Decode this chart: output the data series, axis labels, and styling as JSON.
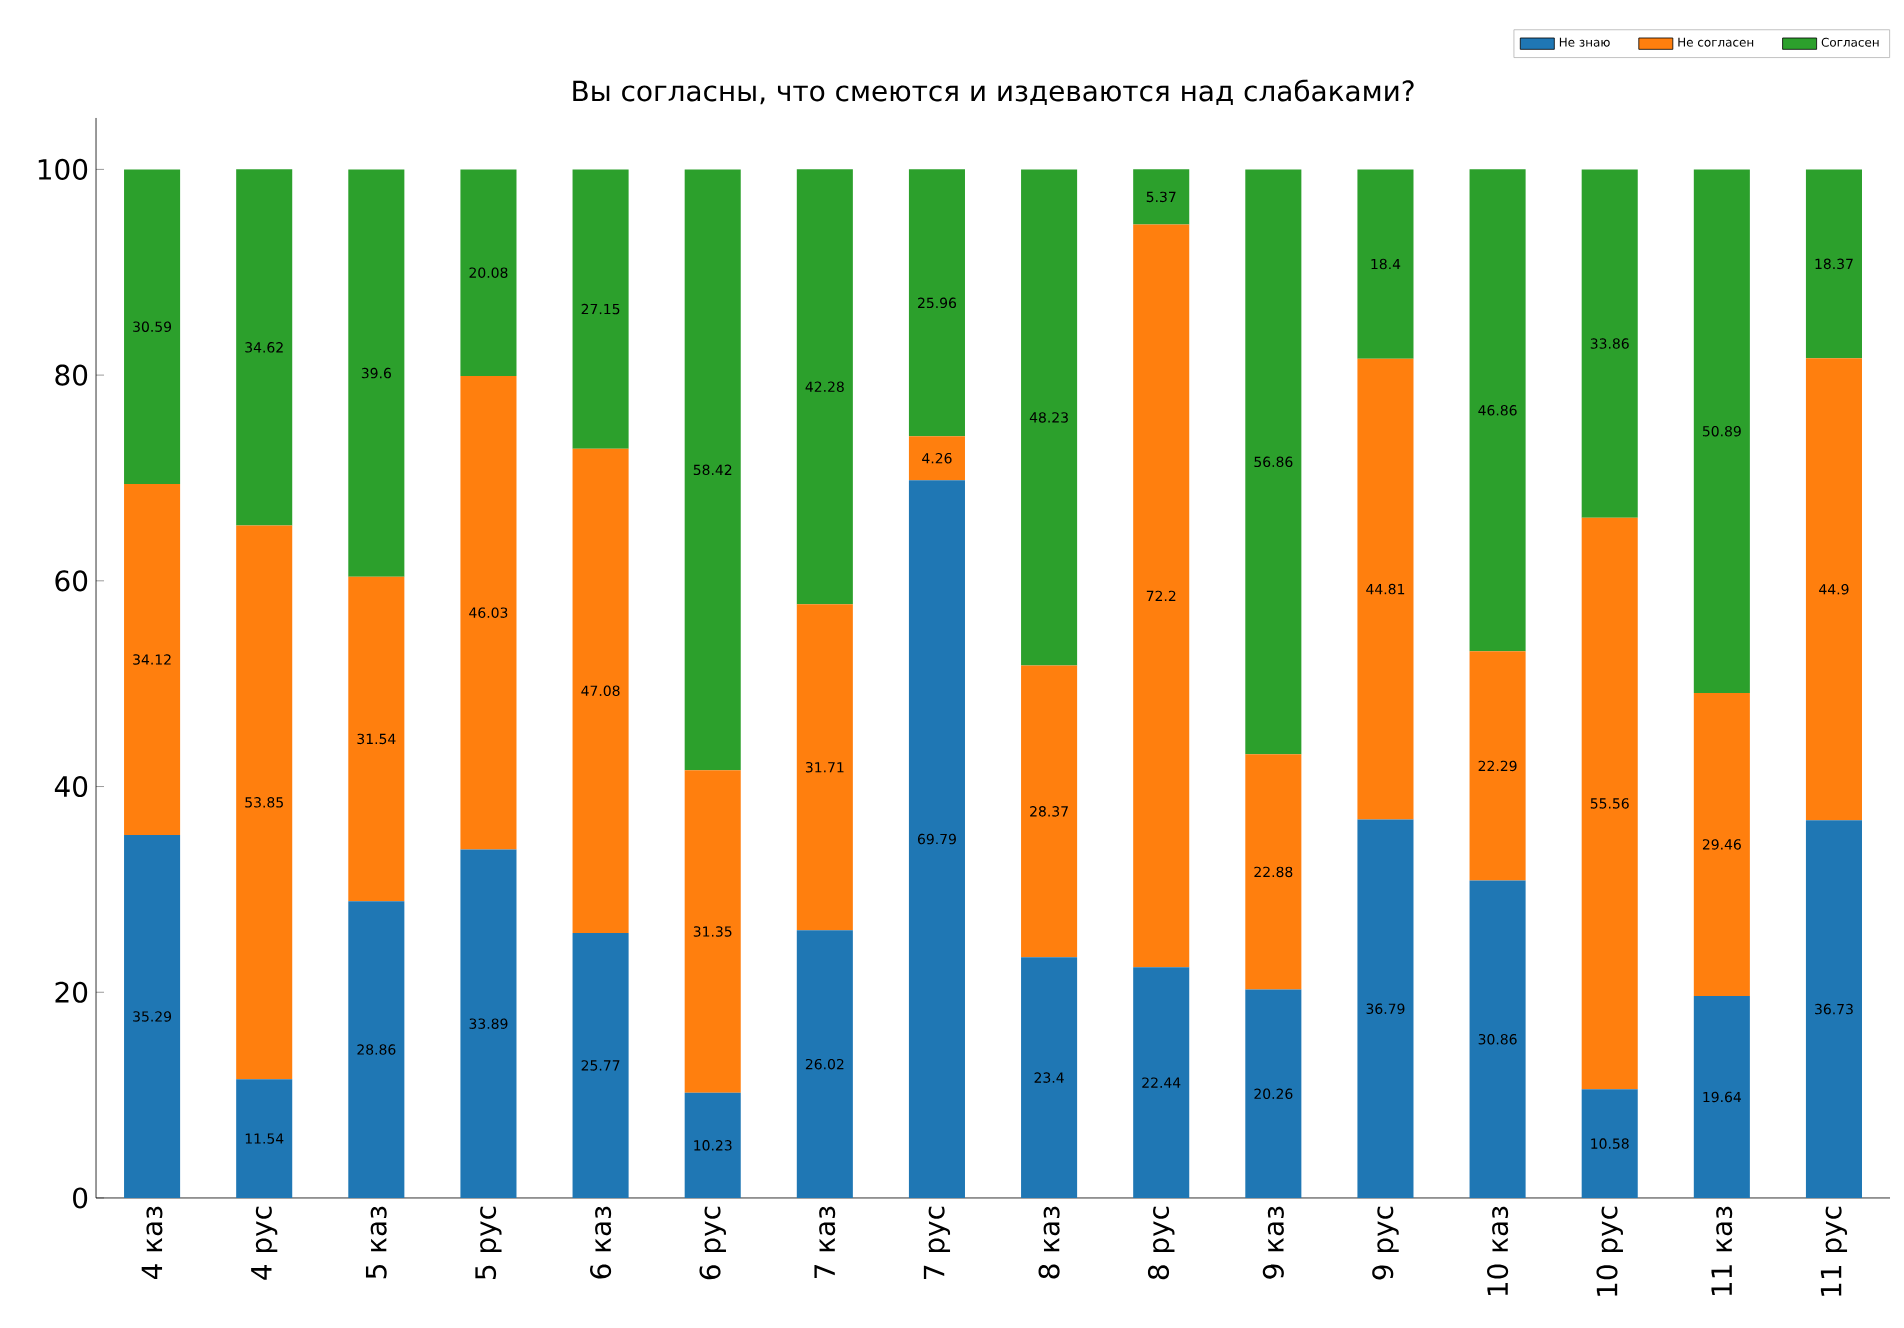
{
  "chart_data": {
    "type": "bar",
    "stacked": true,
    "title": "Вы согласны,  что смеются и издеваются над слабаками?",
    "categories": [
      "4 каз",
      "4 рус",
      "5 каз",
      "5 рус",
      "6 каз",
      "6 рус",
      "7 каз",
      "7 рус",
      "8 каз",
      "8 рус",
      "9 каз",
      "9 рус",
      "10 каз",
      "10 рус",
      "11 каз",
      "11 рус"
    ],
    "series": [
      {
        "name": "Не знаю",
        "color": "#1f77b4",
        "values": [
          35.29,
          11.54,
          28.86,
          33.89,
          25.77,
          10.23,
          26.02,
          69.79,
          23.4,
          22.44,
          20.26,
          36.79,
          30.86,
          10.58,
          19.64,
          36.73
        ]
      },
      {
        "name": "Не согласен",
        "color": "#ff7f0e",
        "values": [
          34.12,
          53.85,
          31.54,
          46.03,
          47.08,
          31.35,
          31.71,
          4.26,
          28.37,
          72.2,
          22.88,
          44.81,
          22.29,
          55.56,
          29.46,
          44.9
        ]
      },
      {
        "name": "Согласен",
        "color": "#2ca02c",
        "values": [
          30.59,
          34.62,
          39.6,
          20.08,
          27.15,
          58.42,
          42.28,
          25.96,
          48.23,
          5.37,
          56.86,
          18.4,
          46.86,
          33.86,
          50.89,
          18.37
        ]
      }
    ],
    "ylim": [
      0,
      105
    ],
    "yticks": [
      0,
      20,
      40,
      60,
      80,
      100
    ],
    "data_labels": true,
    "legend": "top right"
  }
}
